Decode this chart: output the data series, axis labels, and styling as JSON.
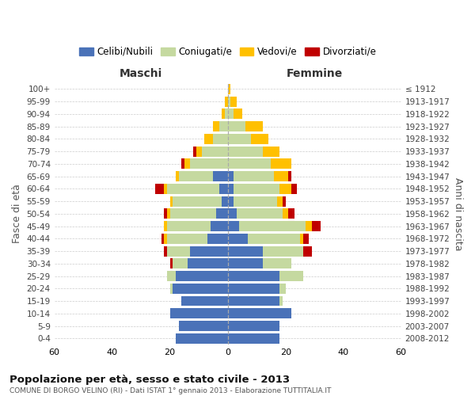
{
  "age_groups": [
    "0-4",
    "5-9",
    "10-14",
    "15-19",
    "20-24",
    "25-29",
    "30-34",
    "35-39",
    "40-44",
    "45-49",
    "50-54",
    "55-59",
    "60-64",
    "65-69",
    "70-74",
    "75-79",
    "80-84",
    "85-89",
    "90-94",
    "95-99",
    "100+"
  ],
  "birth_years": [
    "2008-2012",
    "2003-2007",
    "1998-2002",
    "1993-1997",
    "1988-1992",
    "1983-1987",
    "1978-1982",
    "1973-1977",
    "1968-1972",
    "1963-1967",
    "1958-1962",
    "1953-1957",
    "1948-1952",
    "1943-1947",
    "1938-1942",
    "1933-1937",
    "1928-1932",
    "1923-1927",
    "1918-1922",
    "1913-1917",
    "≤ 1912"
  ],
  "colors": {
    "celibi": "#4a72b8",
    "coniugati": "#c5d9a0",
    "vedovi": "#ffc000",
    "divorziati": "#c00000"
  },
  "maschi": {
    "celibi": [
      18,
      17,
      20,
      16,
      19,
      18,
      14,
      13,
      7,
      6,
      4,
      2,
      3,
      5,
      0,
      0,
      0,
      0,
      0,
      0,
      0
    ],
    "coniugati": [
      0,
      0,
      0,
      0,
      1,
      3,
      5,
      8,
      14,
      15,
      16,
      17,
      18,
      12,
      13,
      9,
      5,
      3,
      1,
      0,
      0
    ],
    "vedovi": [
      0,
      0,
      0,
      0,
      0,
      0,
      0,
      0,
      1,
      1,
      1,
      1,
      1,
      1,
      2,
      2,
      3,
      2,
      1,
      1,
      0
    ],
    "divorziati": [
      0,
      0,
      0,
      0,
      0,
      0,
      1,
      1,
      1,
      0,
      1,
      0,
      3,
      0,
      1,
      1,
      0,
      0,
      0,
      0,
      0
    ]
  },
  "femmine": {
    "celibi": [
      18,
      18,
      22,
      18,
      18,
      18,
      12,
      12,
      7,
      4,
      3,
      2,
      2,
      2,
      0,
      0,
      0,
      0,
      0,
      0,
      0
    ],
    "coniugati": [
      0,
      0,
      0,
      1,
      2,
      8,
      10,
      14,
      18,
      23,
      16,
      15,
      16,
      14,
      15,
      12,
      8,
      6,
      2,
      1,
      0
    ],
    "vedovi": [
      0,
      0,
      0,
      0,
      0,
      0,
      0,
      0,
      1,
      2,
      2,
      2,
      4,
      5,
      7,
      6,
      6,
      6,
      3,
      2,
      1
    ],
    "divorziati": [
      0,
      0,
      0,
      0,
      0,
      0,
      0,
      3,
      2,
      3,
      2,
      1,
      2,
      1,
      0,
      0,
      0,
      0,
      0,
      0,
      0
    ]
  },
  "xlim": 60,
  "xticks": [
    -60,
    -40,
    -20,
    0,
    20,
    40,
    60
  ],
  "xticklabels": [
    "60",
    "40",
    "20",
    "0",
    "20",
    "40",
    "60"
  ],
  "title": "Popolazione per età, sesso e stato civile - 2013",
  "subtitle": "COMUNE DI BORGO VELINO (RI) - Dati ISTAT 1° gennaio 2013 - Elaborazione TUTTITALIA.IT",
  "ylabel_left": "Fasce di età",
  "ylabel_right": "Anni di nascita",
  "label_maschi": "Maschi",
  "label_femmine": "Femmine",
  "legend_labels": [
    "Celibi/Nubili",
    "Coniugati/e",
    "Vedovi/e",
    "Divorziati/e"
  ],
  "background_color": "#ffffff",
  "grid_color": "#cccccc"
}
